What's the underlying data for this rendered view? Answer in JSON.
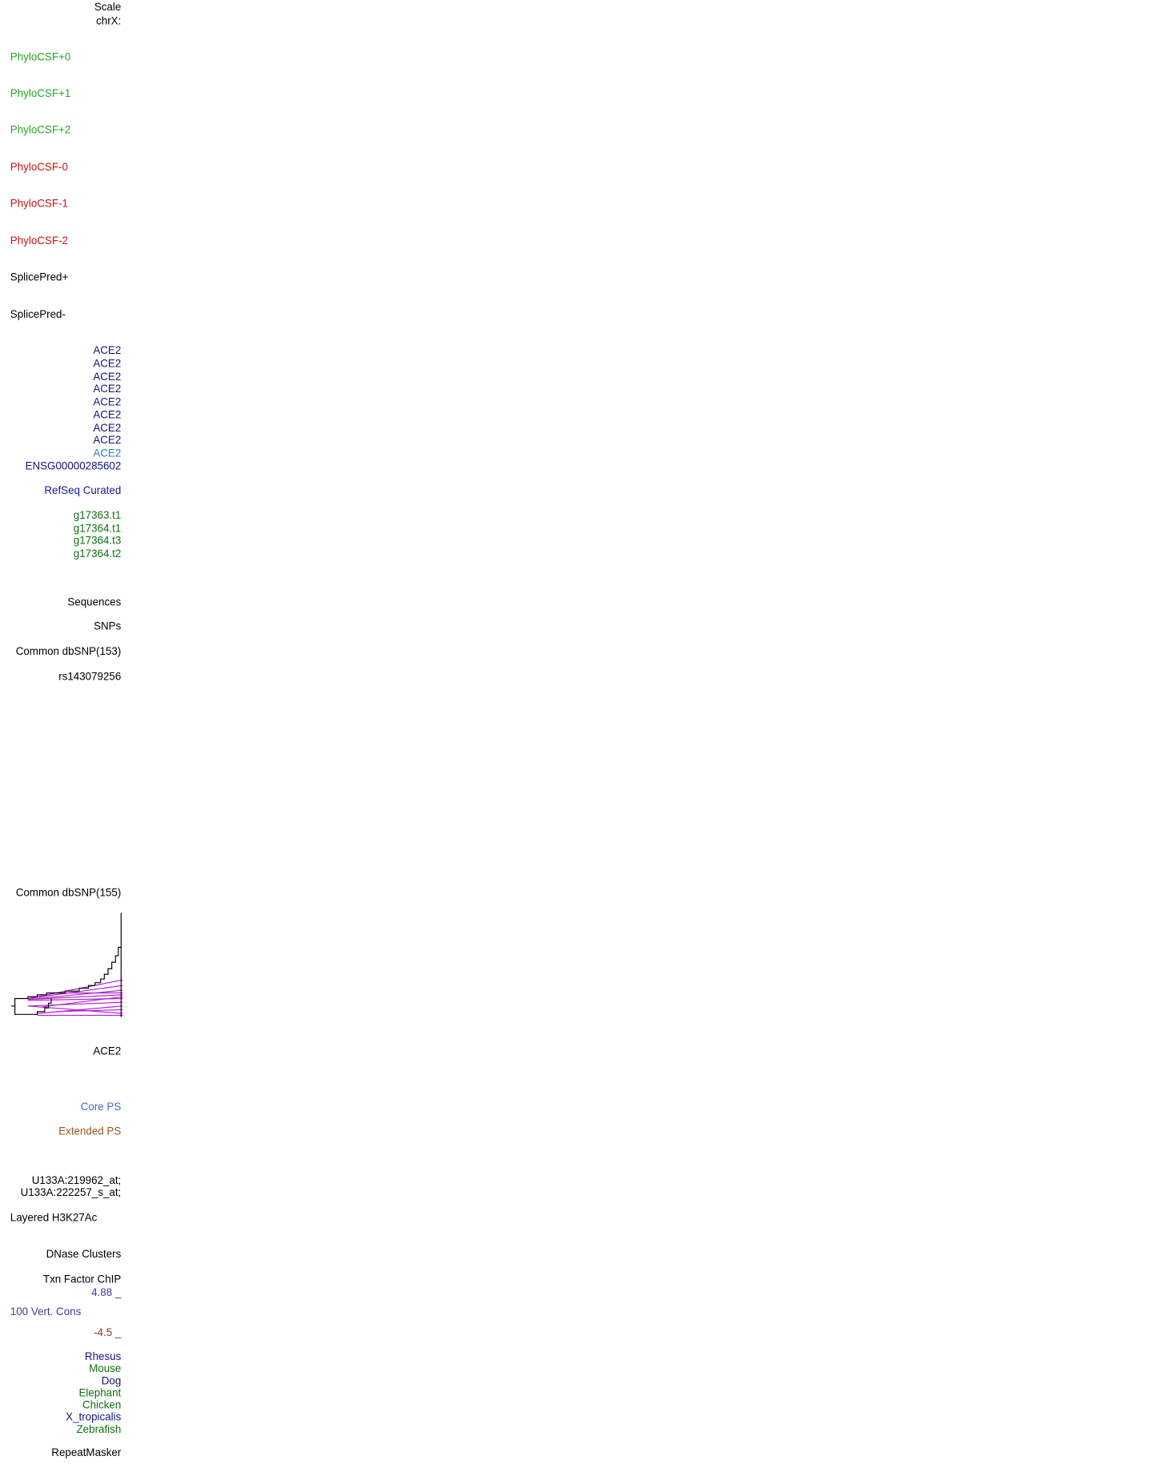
{
  "labels": [
    "Scale",
    "chrX:",
    "PhyloCSF+0",
    "PhyloCSF+1",
    "PhyloCSF+2",
    "PhyloCSF-0",
    "PhyloCSF-1",
    "PhyloCSF-2",
    "SplicePred+",
    "SplicePred-",
    "ACE2",
    "ACE2",
    "ACE2",
    "ACE2",
    "ACE2",
    "ACE2",
    "ACE2",
    "ACE2",
    "ACE2",
    "ENSG00000285602",
    "RefSeq Curated",
    "g17363.t1",
    "g17364.t1",
    "g17364.t3",
    "g17364.t2",
    "Sequences",
    "SNPs",
    "Common dbSNP(153)",
    "rs143079256",
    "Common dbSNP(155)",
    "ACE2",
    "Core PS",
    "Extended PS",
    "U133A:219962_at;",
    "U133A:222257_s_at;",
    "Layered H3K27Ac",
    "DNase Clusters",
    "Txn Factor ChIP",
    "4.88 _",
    "100 Vert. Cons",
    "-4.5 _",
    "Rhesus",
    "Mouse",
    "Dog",
    "Elephant",
    "Chicken",
    "X_tropicalis",
    "Zebrafish",
    "RepeatMasker"
  ]
}
